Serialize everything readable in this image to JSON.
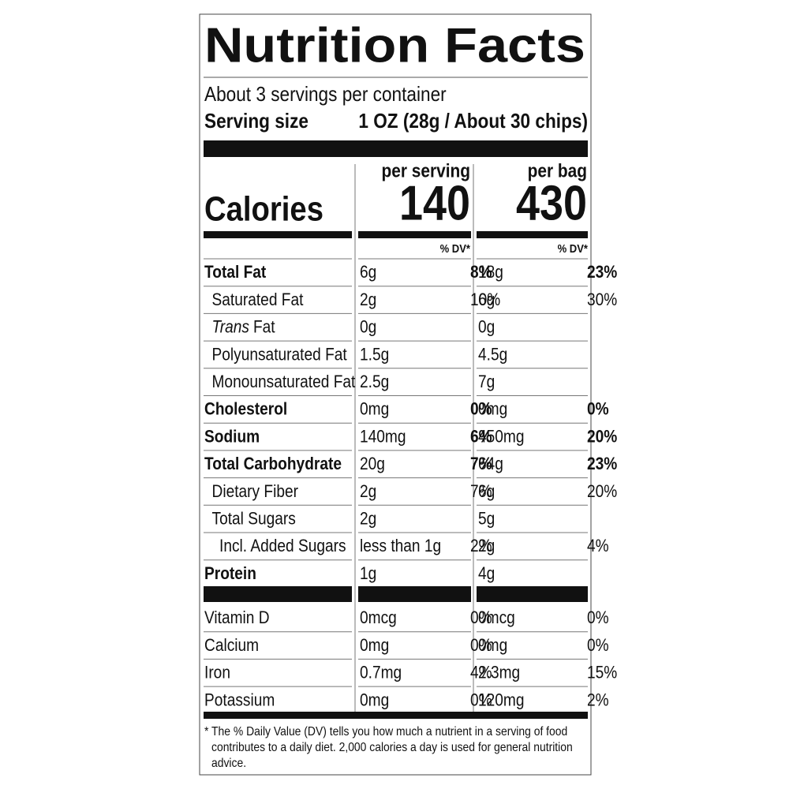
{
  "title": "Nutrition Facts",
  "servings_per_container": "About 3 servings per container",
  "serving_size": {
    "label": "Serving size",
    "value": "1 OZ (28g / About 30 chips)"
  },
  "calories": {
    "label": "Calories",
    "columns": [
      {
        "header": "per serving",
        "value": 140
      },
      {
        "header": "per bag",
        "value": 430
      }
    ]
  },
  "dv_header": [
    "% DV*",
    "% DV*"
  ],
  "nutrients": [
    {
      "name": "Total Fat",
      "bold": true,
      "indent": 0,
      "serving": {
        "amount": "6g",
        "dv": "8%"
      },
      "bag": {
        "amount": "18g",
        "dv": "23%"
      }
    },
    {
      "name": "Saturated Fat",
      "bold": false,
      "indent": 1,
      "serving": {
        "amount": "2g",
        "dv": "10%"
      },
      "bag": {
        "amount": "6g",
        "dv": "30%"
      }
    },
    {
      "name_italic": "Trans",
      "name": "Fat",
      "bold": false,
      "indent": 1,
      "serving": {
        "amount": "0g",
        "dv": null
      },
      "bag": {
        "amount": "0g",
        "dv": null
      }
    },
    {
      "name": "Polyunsaturated Fat",
      "bold": false,
      "indent": 1,
      "serving": {
        "amount": "1.5g",
        "dv": null
      },
      "bag": {
        "amount": "4.5g",
        "dv": null
      }
    },
    {
      "name": "Monounsaturated Fat",
      "bold": false,
      "indent": 1,
      "serving": {
        "amount": "2.5g",
        "dv": null
      },
      "bag": {
        "amount": "7g",
        "dv": null
      }
    },
    {
      "name": "Cholesterol",
      "bold": true,
      "indent": 0,
      "serving": {
        "amount": "0mg",
        "dv": "0%"
      },
      "bag": {
        "amount": "0mg",
        "dv": "0%"
      }
    },
    {
      "name": "Sodium",
      "bold": true,
      "indent": 0,
      "serving": {
        "amount": "140mg",
        "dv": "6%"
      },
      "bag": {
        "amount": "450mg",
        "dv": "20%"
      }
    },
    {
      "name": "Total Carbohydrate",
      "bold": true,
      "indent": 0,
      "serving": {
        "amount": "20g",
        "dv": "7%"
      },
      "bag": {
        "amount": "64g",
        "dv": "23%"
      }
    },
    {
      "name": "Dietary Fiber",
      "bold": false,
      "indent": 1,
      "serving": {
        "amount": "2g",
        "dv": "7%"
      },
      "bag": {
        "amount": "6g",
        "dv": "20%"
      }
    },
    {
      "name": "Total Sugars",
      "bold": false,
      "indent": 1,
      "serving": {
        "amount": "2g",
        "dv": null
      },
      "bag": {
        "amount": "5g",
        "dv": null
      }
    },
    {
      "name": "Incl. Added Sugars",
      "bold": false,
      "indent": 2,
      "serving": {
        "amount": "less than 1g",
        "dv": "2%"
      },
      "bag": {
        "amount": "2g",
        "dv": "4%"
      }
    },
    {
      "name": "Protein",
      "bold": true,
      "indent": 0,
      "serving": {
        "amount": "1g",
        "dv": null
      },
      "bag": {
        "amount": "4g",
        "dv": null
      }
    }
  ],
  "vitamins": [
    {
      "name": "Vitamin D",
      "serving": {
        "amount": "0mcg",
        "dv": "0%"
      },
      "bag": {
        "amount": "0mcg",
        "dv": "0%"
      }
    },
    {
      "name": "Calcium",
      "serving": {
        "amount": "0mg",
        "dv": "0%"
      },
      "bag": {
        "amount": "0mg",
        "dv": "0%"
      }
    },
    {
      "name": "Iron",
      "serving": {
        "amount": "0.7mg",
        "dv": "4%"
      },
      "bag": {
        "amount": "2.3mg",
        "dv": "15%"
      }
    },
    {
      "name": "Potassium",
      "serving": {
        "amount": "0mg",
        "dv": "0%"
      },
      "bag": {
        "amount": "120mg",
        "dv": "2%"
      }
    }
  ],
  "footnote": [
    "* The % Daily Value (DV) tells you how much a nutrient in a serving of food",
    "contributes to a daily diet. 2,000 calories a day is used for general nutrition",
    "advice."
  ]
}
